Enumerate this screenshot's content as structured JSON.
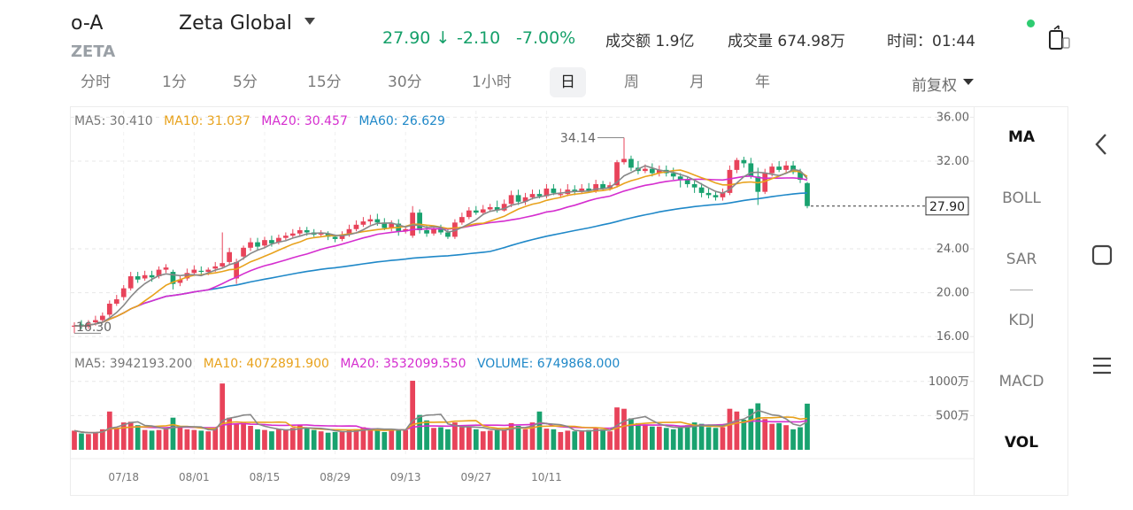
{
  "header": {
    "code": "o-A",
    "ticker": "ZETA",
    "name": "Zeta Global",
    "price": "27.90",
    "price_arrow": "↓",
    "change": "-2.10",
    "change_pct": "-7.00%",
    "turnover_label": "成交额",
    "turnover": "1.9亿",
    "volume_label": "成交量",
    "volume": "674.98万",
    "time_label": "时间：",
    "time": "01:44"
  },
  "tabs": [
    "分时",
    "1分",
    "5分",
    "15分",
    "30分",
    "1小时",
    "日",
    "周",
    "月",
    "年"
  ],
  "active_tab": "日",
  "adjust": "前复权",
  "indicators": [
    "MA",
    "BOLL",
    "SAR",
    "KDJ",
    "MACD",
    "VOL"
  ],
  "colors": {
    "up": "#e8435a",
    "down": "#19a26f",
    "ma5": "#888888",
    "ma10": "#e8a21c",
    "ma20": "#d52ecf",
    "ma60": "#1f88c8",
    "volume": "#1f88c8"
  },
  "chart_data": {
    "type": "candlestick",
    "ma_legend": {
      "ma5": "MA5: 30.410",
      "ma10": "MA10: 31.037",
      "ma20": "MA20: 30.457",
      "ma60": "MA60: 26.629"
    },
    "vol_legend": {
      "ma5": "MA5: 3942193.200",
      "ma10": "MA10: 4072891.900",
      "ma20": "MA20: 3532099.550",
      "volume": "VOLUME: 6749868.000"
    },
    "price_ticks": [
      "36.00",
      "32.00",
      "24.00",
      "20.00",
      "16.00"
    ],
    "price_tick_values": [
      36,
      32,
      24,
      20,
      16
    ],
    "volume_ticks": [
      "1000万",
      "500万"
    ],
    "volume_tick_values": [
      1000,
      500
    ],
    "price_range": [
      14.8,
      36.6
    ],
    "volume_range": [
      0,
      1140
    ],
    "x_ticks": [
      {
        "label": "07/18",
        "index": 7
      },
      {
        "label": "08/01",
        "index": 17
      },
      {
        "label": "08/15",
        "index": 27
      },
      {
        "label": "08/29",
        "index": 37
      },
      {
        "label": "09/13",
        "index": 47
      },
      {
        "label": "09/27",
        "index": 57
      },
      {
        "label": "10/11",
        "index": 67
      }
    ],
    "max_label": "34.14",
    "min_label": "16.30",
    "last_label": "27.90",
    "last_price": 27.9,
    "candles": [
      {
        "o": 16.9,
        "c": 17.0,
        "h": 17.3,
        "l": 16.3,
        "v": 280
      },
      {
        "o": 17.1,
        "c": 16.9,
        "h": 17.5,
        "l": 16.7,
        "v": 240
      },
      {
        "o": 16.9,
        "c": 17.2,
        "h": 17.5,
        "l": 16.7,
        "v": 230
      },
      {
        "o": 17.3,
        "c": 17.5,
        "h": 17.9,
        "l": 17.0,
        "v": 250
      },
      {
        "o": 17.5,
        "c": 17.9,
        "h": 18.2,
        "l": 17.3,
        "v": 300
      },
      {
        "o": 18.0,
        "c": 19.0,
        "h": 19.3,
        "l": 17.8,
        "v": 560
      },
      {
        "o": 19.0,
        "c": 19.4,
        "h": 19.8,
        "l": 18.8,
        "v": 320
      },
      {
        "o": 19.6,
        "c": 20.4,
        "h": 20.7,
        "l": 19.3,
        "v": 400
      },
      {
        "o": 20.4,
        "c": 21.5,
        "h": 21.9,
        "l": 20.2,
        "v": 410
      },
      {
        "o": 21.5,
        "c": 21.2,
        "h": 21.9,
        "l": 20.9,
        "v": 360
      },
      {
        "o": 21.3,
        "c": 21.6,
        "h": 22.0,
        "l": 21.1,
        "v": 290
      },
      {
        "o": 21.6,
        "c": 21.4,
        "h": 22.0,
        "l": 21.0,
        "v": 280
      },
      {
        "o": 21.5,
        "c": 22.1,
        "h": 22.4,
        "l": 21.3,
        "v": 290
      },
      {
        "o": 22.1,
        "c": 22.3,
        "h": 22.6,
        "l": 21.8,
        "v": 300
      },
      {
        "o": 21.9,
        "c": 20.8,
        "h": 22.1,
        "l": 20.3,
        "v": 470
      },
      {
        "o": 20.9,
        "c": 21.2,
        "h": 21.6,
        "l": 20.6,
        "v": 330
      },
      {
        "o": 21.3,
        "c": 21.8,
        "h": 22.2,
        "l": 21.1,
        "v": 300
      },
      {
        "o": 21.8,
        "c": 22.1,
        "h": 22.5,
        "l": 21.6,
        "v": 290
      },
      {
        "o": 22.0,
        "c": 21.9,
        "h": 22.4,
        "l": 21.6,
        "v": 280
      },
      {
        "o": 21.9,
        "c": 22.1,
        "h": 22.3,
        "l": 21.6,
        "v": 270
      },
      {
        "o": 22.2,
        "c": 22.4,
        "h": 22.8,
        "l": 21.9,
        "v": 320
      },
      {
        "o": 22.4,
        "c": 22.7,
        "h": 25.5,
        "l": 22.2,
        "v": 970
      },
      {
        "o": 22.8,
        "c": 23.7,
        "h": 24.1,
        "l": 22.5,
        "v": 470
      },
      {
        "o": 21.3,
        "c": 22.8,
        "h": 23.1,
        "l": 20.8,
        "v": 380
      },
      {
        "o": 23.3,
        "c": 24.1,
        "h": 24.3,
        "l": 23.0,
        "v": 400
      },
      {
        "o": 24.1,
        "c": 24.6,
        "h": 25.0,
        "l": 23.8,
        "v": 350
      },
      {
        "o": 24.6,
        "c": 24.2,
        "h": 25.0,
        "l": 23.9,
        "v": 300
      },
      {
        "o": 24.3,
        "c": 24.8,
        "h": 25.1,
        "l": 24.1,
        "v": 290
      },
      {
        "o": 24.8,
        "c": 24.5,
        "h": 25.2,
        "l": 24.2,
        "v": 270
      },
      {
        "o": 24.6,
        "c": 25.0,
        "h": 25.3,
        "l": 24.4,
        "v": 300
      },
      {
        "o": 25.0,
        "c": 25.2,
        "h": 25.5,
        "l": 24.8,
        "v": 290
      },
      {
        "o": 25.2,
        "c": 25.4,
        "h": 25.8,
        "l": 25.0,
        "v": 320
      },
      {
        "o": 25.4,
        "c": 25.7,
        "h": 26.0,
        "l": 25.1,
        "v": 360
      },
      {
        "o": 25.7,
        "c": 25.5,
        "h": 26.0,
        "l": 25.2,
        "v": 330
      },
      {
        "o": 25.5,
        "c": 25.3,
        "h": 25.8,
        "l": 25.1,
        "v": 290
      },
      {
        "o": 25.3,
        "c": 25.4,
        "h": 25.7,
        "l": 25.1,
        "v": 270
      },
      {
        "o": 25.4,
        "c": 25.1,
        "h": 25.6,
        "l": 24.8,
        "v": 250
      },
      {
        "o": 25.1,
        "c": 24.9,
        "h": 25.3,
        "l": 24.6,
        "v": 260
      },
      {
        "o": 24.9,
        "c": 25.3,
        "h": 25.6,
        "l": 24.7,
        "v": 260
      },
      {
        "o": 25.3,
        "c": 25.8,
        "h": 26.2,
        "l": 25.1,
        "v": 290
      },
      {
        "o": 25.8,
        "c": 26.2,
        "h": 26.6,
        "l": 25.6,
        "v": 300
      },
      {
        "o": 26.2,
        "c": 26.5,
        "h": 26.9,
        "l": 26.0,
        "v": 330
      },
      {
        "o": 26.5,
        "c": 26.7,
        "h": 27.1,
        "l": 26.2,
        "v": 310
      },
      {
        "o": 26.7,
        "c": 26.4,
        "h": 27.2,
        "l": 26.1,
        "v": 310
      },
      {
        "o": 26.4,
        "c": 25.9,
        "h": 26.8,
        "l": 25.7,
        "v": 260
      },
      {
        "o": 25.9,
        "c": 26.3,
        "h": 26.6,
        "l": 25.6,
        "v": 300
      },
      {
        "o": 26.3,
        "c": 25.6,
        "h": 26.7,
        "l": 25.2,
        "v": 290
      },
      {
        "o": 25.6,
        "c": 25.8,
        "h": 26.1,
        "l": 25.4,
        "v": 290
      },
      {
        "o": 25.2,
        "c": 27.3,
        "h": 27.9,
        "l": 25.0,
        "v": 1010
      },
      {
        "o": 27.3,
        "c": 25.7,
        "h": 27.6,
        "l": 25.4,
        "v": 510
      },
      {
        "o": 25.7,
        "c": 25.4,
        "h": 26.1,
        "l": 25.1,
        "v": 430
      },
      {
        "o": 25.4,
        "c": 25.9,
        "h": 26.1,
        "l": 25.2,
        "v": 320
      },
      {
        "o": 25.9,
        "c": 25.5,
        "h": 26.2,
        "l": 25.3,
        "v": 330
      },
      {
        "o": 25.5,
        "c": 25.1,
        "h": 25.8,
        "l": 24.9,
        "v": 300
      },
      {
        "o": 25.1,
        "c": 26.4,
        "h": 26.7,
        "l": 24.9,
        "v": 400
      },
      {
        "o": 26.4,
        "c": 26.9,
        "h": 27.3,
        "l": 26.2,
        "v": 330
      },
      {
        "o": 26.9,
        "c": 27.5,
        "h": 27.8,
        "l": 26.7,
        "v": 330
      },
      {
        "o": 27.5,
        "c": 27.3,
        "h": 27.9,
        "l": 27.1,
        "v": 300
      },
      {
        "o": 27.3,
        "c": 27.6,
        "h": 28.0,
        "l": 27.1,
        "v": 270
      },
      {
        "o": 27.6,
        "c": 27.8,
        "h": 28.1,
        "l": 27.4,
        "v": 280
      },
      {
        "o": 27.8,
        "c": 27.5,
        "h": 28.4,
        "l": 27.3,
        "v": 290
      },
      {
        "o": 27.5,
        "c": 28.1,
        "h": 28.5,
        "l": 27.4,
        "v": 300
      },
      {
        "o": 28.1,
        "c": 28.9,
        "h": 29.3,
        "l": 27.8,
        "v": 390
      },
      {
        "o": 28.9,
        "c": 28.3,
        "h": 29.4,
        "l": 28.0,
        "v": 350
      },
      {
        "o": 28.3,
        "c": 28.7,
        "h": 29.1,
        "l": 28.0,
        "v": 300
      },
      {
        "o": 28.7,
        "c": 29.0,
        "h": 29.4,
        "l": 28.5,
        "v": 400
      },
      {
        "o": 29.0,
        "c": 28.8,
        "h": 29.4,
        "l": 28.6,
        "v": 560
      },
      {
        "o": 28.8,
        "c": 29.5,
        "h": 29.9,
        "l": 28.6,
        "v": 310
      },
      {
        "o": 29.5,
        "c": 29.1,
        "h": 29.9,
        "l": 28.9,
        "v": 300
      },
      {
        "o": 28.9,
        "c": 29.0,
        "h": 29.5,
        "l": 28.7,
        "v": 260
      },
      {
        "o": 29.0,
        "c": 29.4,
        "h": 29.9,
        "l": 28.8,
        "v": 280
      },
      {
        "o": 29.4,
        "c": 29.2,
        "h": 29.8,
        "l": 28.9,
        "v": 270
      },
      {
        "o": 29.2,
        "c": 29.5,
        "h": 29.9,
        "l": 29.0,
        "v": 270
      },
      {
        "o": 29.5,
        "c": 29.3,
        "h": 30.0,
        "l": 29.1,
        "v": 290
      },
      {
        "o": 29.3,
        "c": 29.9,
        "h": 30.3,
        "l": 29.1,
        "v": 310
      },
      {
        "o": 29.9,
        "c": 29.5,
        "h": 30.2,
        "l": 29.3,
        "v": 300
      },
      {
        "o": 29.5,
        "c": 29.8,
        "h": 30.1,
        "l": 29.3,
        "v": 270
      },
      {
        "o": 29.8,
        "c": 31.9,
        "h": 32.1,
        "l": 29.6,
        "v": 620
      },
      {
        "o": 31.9,
        "c": 32.2,
        "h": 34.14,
        "l": 31.7,
        "v": 600
      },
      {
        "o": 32.2,
        "c": 31.4,
        "h": 32.5,
        "l": 31.1,
        "v": 460
      },
      {
        "o": 31.4,
        "c": 31.1,
        "h": 32.0,
        "l": 30.8,
        "v": 390
      },
      {
        "o": 31.1,
        "c": 31.3,
        "h": 31.7,
        "l": 30.9,
        "v": 360
      },
      {
        "o": 31.3,
        "c": 30.9,
        "h": 31.8,
        "l": 30.6,
        "v": 340
      },
      {
        "o": 30.9,
        "c": 31.2,
        "h": 31.6,
        "l": 30.6,
        "v": 340
      },
      {
        "o": 31.2,
        "c": 30.9,
        "h": 31.6,
        "l": 30.6,
        "v": 320
      },
      {
        "o": 30.9,
        "c": 30.6,
        "h": 31.4,
        "l": 30.3,
        "v": 300
      },
      {
        "o": 30.6,
        "c": 30.3,
        "h": 30.9,
        "l": 29.6,
        "v": 330
      },
      {
        "o": 30.3,
        "c": 29.9,
        "h": 30.6,
        "l": 29.6,
        "v": 360
      },
      {
        "o": 29.9,
        "c": 29.6,
        "h": 30.3,
        "l": 29.1,
        "v": 400
      },
      {
        "o": 29.6,
        "c": 29.1,
        "h": 30.0,
        "l": 28.7,
        "v": 380
      },
      {
        "o": 29.1,
        "c": 28.9,
        "h": 29.5,
        "l": 28.6,
        "v": 330
      },
      {
        "o": 28.9,
        "c": 28.7,
        "h": 29.3,
        "l": 28.4,
        "v": 320
      },
      {
        "o": 28.7,
        "c": 29.1,
        "h": 29.5,
        "l": 28.4,
        "v": 330
      },
      {
        "o": 29.1,
        "c": 31.2,
        "h": 31.6,
        "l": 28.9,
        "v": 600
      },
      {
        "o": 31.2,
        "c": 32.1,
        "h": 32.3,
        "l": 30.9,
        "v": 560
      },
      {
        "o": 32.1,
        "c": 31.8,
        "h": 32.4,
        "l": 31.4,
        "v": 440
      },
      {
        "o": 31.8,
        "c": 30.6,
        "h": 32.3,
        "l": 30.4,
        "v": 600
      },
      {
        "o": 30.6,
        "c": 29.2,
        "h": 31.4,
        "l": 28.0,
        "v": 680
      },
      {
        "o": 29.2,
        "c": 30.9,
        "h": 31.3,
        "l": 29.0,
        "v": 450
      },
      {
        "o": 30.9,
        "c": 31.5,
        "h": 31.8,
        "l": 30.6,
        "v": 380
      },
      {
        "o": 31.5,
        "c": 31.2,
        "h": 32.0,
        "l": 31.0,
        "v": 390
      },
      {
        "o": 31.2,
        "c": 31.6,
        "h": 32.0,
        "l": 31.0,
        "v": 360
      },
      {
        "o": 31.6,
        "c": 31.0,
        "h": 32.0,
        "l": 30.8,
        "v": 300
      },
      {
        "o": 31.0,
        "c": 30.3,
        "h": 31.3,
        "l": 30.0,
        "v": 330
      },
      {
        "o": 30.0,
        "c": 27.9,
        "h": 30.1,
        "l": 27.7,
        "v": 675
      }
    ]
  }
}
